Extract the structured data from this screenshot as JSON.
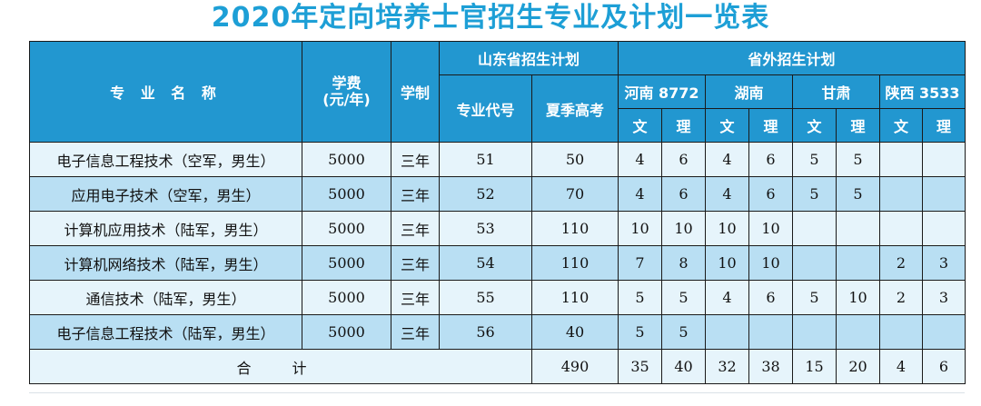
{
  "title": "2020年定向培养士官招生专业及计划一览表",
  "headers": {
    "major": "专 业 名 称",
    "tuition": "学费\n(元/年)",
    "duration": "学制",
    "shandong_group": "山东省招生计划",
    "code": "专业代号",
    "summer": "夏季高考",
    "outside_group": "省外招生计划",
    "provinces": [
      "河南 8772",
      "湖南",
      "甘肃",
      "陕西 3533"
    ],
    "wen": "文",
    "li": "理"
  },
  "rows": [
    {
      "name": "电子信息工程技术（空军，男生）",
      "tuition": "5000",
      "duration": "三年",
      "code": "51",
      "summer": "50",
      "henan_w": "4",
      "henan_l": "6",
      "hunan_w": "4",
      "hunan_l": "6",
      "gansu_w": "5",
      "gansu_l": "5",
      "shaanxi_w": "",
      "shaanxi_l": ""
    },
    {
      "name": "应用电子技术（空军，男生）",
      "tuition": "5000",
      "duration": "三年",
      "code": "52",
      "summer": "70",
      "henan_w": "4",
      "henan_l": "6",
      "hunan_w": "4",
      "hunan_l": "6",
      "gansu_w": "5",
      "gansu_l": "5",
      "shaanxi_w": "",
      "shaanxi_l": ""
    },
    {
      "name": "计算机应用技术（陆军，男生）",
      "tuition": "5000",
      "duration": "三年",
      "code": "53",
      "summer": "110",
      "henan_w": "10",
      "henan_l": "10",
      "hunan_w": "10",
      "hunan_l": "10",
      "gansu_w": "",
      "gansu_l": "",
      "shaanxi_w": "",
      "shaanxi_l": ""
    },
    {
      "name": "计算机网络技术（陆军，男生）",
      "tuition": "5000",
      "duration": "三年",
      "code": "54",
      "summer": "110",
      "henan_w": "7",
      "henan_l": "8",
      "hunan_w": "10",
      "hunan_l": "10",
      "gansu_w": "",
      "gansu_l": "",
      "shaanxi_w": "2",
      "shaanxi_l": "3"
    },
    {
      "name": "通信技术（陆军，男生）",
      "tuition": "5000",
      "duration": "三年",
      "code": "55",
      "summer": "110",
      "henan_w": "5",
      "henan_l": "5",
      "hunan_w": "4",
      "hunan_l": "6",
      "gansu_w": "5",
      "gansu_l": "10",
      "shaanxi_w": "2",
      "shaanxi_l": "3"
    },
    {
      "name": "电子信息工程技术（陆军，男生）",
      "tuition": "5000",
      "duration": "三年",
      "code": "56",
      "summer": "40",
      "henan_w": "5",
      "henan_l": "5",
      "hunan_w": "",
      "hunan_l": "",
      "gansu_w": "",
      "gansu_l": "",
      "shaanxi_w": "",
      "shaanxi_l": ""
    }
  ],
  "total": {
    "label": "合 计",
    "summer": "490",
    "henan_w": "35",
    "henan_l": "40",
    "hunan_w": "32",
    "hunan_l": "38",
    "gansu_w": "15",
    "gansu_l": "20",
    "shaanxi_w": "4",
    "shaanxi_l": "6"
  },
  "colors": {
    "title": "#1d9fd6",
    "header_bg": "#2297d0",
    "row_light": "#e6f4fb",
    "row_dark": "#b9dff3"
  }
}
